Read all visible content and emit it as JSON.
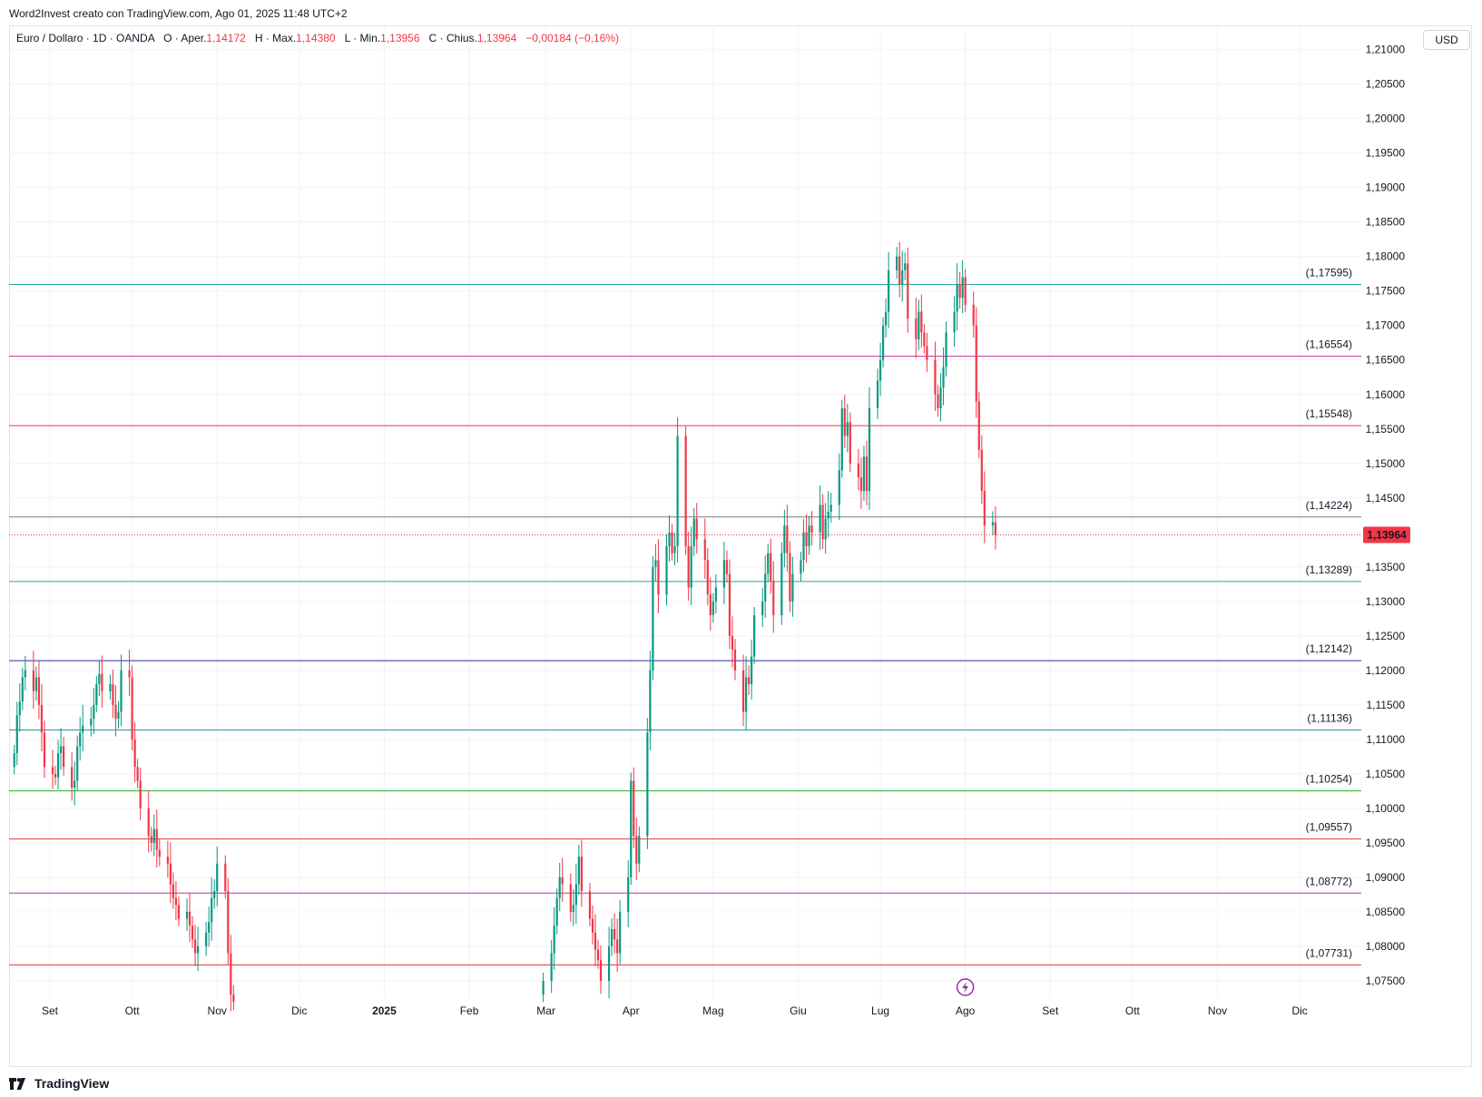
{
  "header": {
    "text": "Word2Invest creato con TradingView.com, Ago 01, 2025 11:48 UTC+2"
  },
  "legend": {
    "symbol": "Euro / Dollaro · 1D · OANDA",
    "open_label": "O · Aper.",
    "open": "1,14172",
    "high_label": "H · Max.",
    "high": "1,14380",
    "low_label": "L · Min.",
    "low": "1,13956",
    "close_label": "C · Chius.",
    "close": "1,13964",
    "change": "−0,00184 (−0,16%)"
  },
  "currency": "USD",
  "footer": {
    "brand": "TradingView",
    "logo_icon": "tradingview-logo-icon"
  },
  "flash_icon": "lightning-icon",
  "colors": {
    "up": "#089981",
    "down": "#f23645",
    "grid": "#f0f3fa",
    "price_tag": "#f23645"
  },
  "chart_data": {
    "type": "candlestick",
    "title": "Euro / Dollaro · 1D · OANDA",
    "grid": true,
    "y_axis_side": "right",
    "ylim": [
      1.0725,
      1.2135
    ],
    "y_ticks": [
      "1,21000",
      "1,20500",
      "1,20000",
      "1,19500",
      "1,19000",
      "1,18500",
      "1,18000",
      "1,17500",
      "1,17000",
      "1,16500",
      "1,16000",
      "1,15500",
      "1,15000",
      "1,14500",
      "1,14000",
      "1,13500",
      "1,13000",
      "1,12500",
      "1,12000",
      "1,11500",
      "1,11000",
      "1,10500",
      "1,10000",
      "1,09500",
      "1,09000",
      "1,08500",
      "1,08000",
      "1,07500"
    ],
    "x_labels": [
      "Set",
      "Ott",
      "Nov",
      "Dic",
      "2025",
      "Feb",
      "Mar",
      "Apr",
      "Mag",
      "Giu",
      "Lug",
      "Ago",
      "Set",
      "Ott",
      "Nov",
      "Dic"
    ],
    "current_price": {
      "value": 1.13964,
      "label": "1,13964"
    },
    "levels": [
      {
        "value": 1.17595,
        "label": "(1,17595)",
        "color": "#22ab94"
      },
      {
        "value": 1.16554,
        "label": "(1,16554)",
        "color": "#cc2f9c"
      },
      {
        "value": 1.15548,
        "label": "(1,15548)",
        "color": "#e03a3a"
      },
      {
        "value": 1.14224,
        "label": "(1,14224)",
        "color": "#787b86"
      },
      {
        "value": 1.13289,
        "label": "(1,13289)",
        "color": "#22ab94"
      },
      {
        "value": 1.12142,
        "label": "(1,12142)",
        "color": "#2e2e9e"
      },
      {
        "value": 1.11136,
        "label": "(1,11136)",
        "color": "#2f8fa8"
      },
      {
        "value": 1.10254,
        "label": "(1,10254)",
        "color": "#1fb31f"
      },
      {
        "value": 1.09557,
        "label": "(1,09557)",
        "color": "#e03a3a"
      },
      {
        "value": 1.08772,
        "label": "(1,08772)",
        "color": "#cc2f9c"
      },
      {
        "value": 1.07731,
        "label": "(1,07731)",
        "color": "#e03a3a"
      }
    ],
    "segments": [
      {
        "start": "2024-08-19",
        "closes": [
          1.108,
          1.1135,
          1.1155,
          1.119,
          1.12,
          1.117,
          1.119,
          1.115,
          1.111,
          1.106,
          1.105,
          1.1045,
          1.108,
          1.109,
          1.106,
          1.103,
          1.104,
          1.109,
          1.111,
          1.112,
          1.113,
          1.115,
          1.118,
          1.1195,
          1.117,
          1.118,
          1.115,
          1.113,
          1.114,
          1.12,
          1.119,
          1.11,
          1.106,
          1.104,
          1.1,
          1.096,
          1.095,
          1.097,
          1.094,
          1.093,
          1.092,
          1.089,
          1.087,
          1.086,
          1.084,
          1.085,
          1.083,
          1.081,
          1.079,
          1.08,
          1.082,
          1.0835,
          1.087,
          1.088,
          1.092,
          1.088,
          1.079,
          1.073,
          1.072
        ]
      },
      {
        "start": "2025-02-28",
        "closes": [
          1.075,
          1.079,
          1.083,
          1.087,
          1.09,
          1.089,
          1.085,
          1.086,
          1.089,
          1.093,
          1.088,
          1.084,
          1.082,
          1.0795,
          1.078,
          1.075,
          1.08,
          1.0825,
          1.081,
          1.079,
          1.085,
          1.09,
          1.104,
          1.096,
          1.092,
          1.096,
          1.111,
          1.12,
          1.135,
          1.136,
          1.131,
          1.138,
          1.14,
          1.137,
          1.138,
          1.154,
          1.138,
          1.132,
          1.138,
          1.142,
          1.139,
          1.136,
          1.131,
          1.128,
          1.13,
          1.132,
          1.136,
          1.134,
          1.125,
          1.123,
          1.12,
          1.114,
          1.119,
          1.118,
          1.122,
          1.128,
          1.13,
          1.134,
          1.137,
          1.133,
          1.128,
          1.137,
          1.141,
          1.137,
          1.13,
          1.134,
          1.136,
          1.14,
          1.138,
          1.141,
          1.14,
          1.144,
          1.139,
          1.142,
          1.143,
          1.144,
          1.149,
          1.158,
          1.154,
          1.156,
          1.15,
          1.148,
          1.146,
          1.151,
          1.146,
          1.158,
          1.162,
          1.165,
          1.17,
          1.172,
          1.178,
          1.18,
          1.176,
          1.178,
          1.179,
          1.171,
          1.168,
          1.172,
          1.169,
          1.167,
          1.165,
          1.16,
          1.158,
          1.161,
          1.164,
          1.169,
          1.172,
          1.176,
          1.174,
          1.177,
          1.173,
          1.17,
          1.159,
          1.152,
          1.146,
          1.141,
          1.1415,
          1.1396
        ]
      }
    ]
  }
}
